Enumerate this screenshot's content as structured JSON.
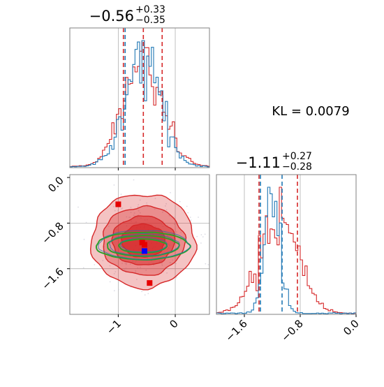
{
  "kl_label": "KL = 0.0079",
  "colors": {
    "red": "#d62728",
    "blue": "#1f77b4",
    "green": "#2ca02c",
    "grid": "#b0b0b0",
    "frame": "#808080"
  },
  "chart_data": [
    {
      "type": "histogram",
      "panel": "top-left",
      "title": {
        "base": "−0.56",
        "sup": "+0.33",
        "sub": "−0.35"
      },
      "xlim": [
        -1.85,
        0.6
      ],
      "grid_x": [
        -1,
        0
      ],
      "quantile_lines": {
        "red": [
          -0.91,
          -0.56,
          -0.23
        ],
        "blue": [
          -0.88
        ]
      },
      "series": [
        {
          "name": "",
          "color": "red",
          "center": -0.56,
          "width": 0.34
        },
        {
          "name": "",
          "color": "blue",
          "center": -0.57,
          "width": 0.31
        }
      ]
    },
    {
      "type": "histogram",
      "panel": "bottom-right",
      "title": {
        "base": "−1.11",
        "sup": "+0.27",
        "sub": "−0.28"
      },
      "xlim": [
        -2.0,
        0.0
      ],
      "xticks": [
        "−1.6",
        "−0.8",
        "0.0"
      ],
      "xtick_values": [
        -1.6,
        -0.8,
        0.0
      ],
      "grid_x": [
        -1.6,
        -0.8
      ],
      "quantile_lines": {
        "red": [
          -1.39,
          -0.84
        ],
        "blue": [
          -1.37,
          -1.06
        ]
      },
      "series": [
        {
          "name": "",
          "color": "red",
          "center": -1.11,
          "width": 0.28
        },
        {
          "name": "",
          "color": "blue",
          "center": -1.2,
          "width": 0.11
        }
      ]
    },
    {
      "type": "contour",
      "panel": "bottom-left",
      "xlim": [
        -1.85,
        0.6
      ],
      "ylim": [
        -2.4,
        0.05
      ],
      "xticks": [
        "−1",
        "0"
      ],
      "xtick_values": [
        -1,
        0
      ],
      "yticks": [
        "0.0",
        "−0.8",
        "−1.6"
      ],
      "ytick_values": [
        0.0,
        -0.8,
        -1.6
      ],
      "grid_x": [
        -1,
        0
      ],
      "grid_y": [
        -0.8,
        -1.6
      ],
      "red_contours": [
        {
          "cx": -0.56,
          "cy": -1.11,
          "rx": 0.91,
          "ry": 0.82
        },
        {
          "cx": -0.56,
          "cy": -1.11,
          "rx": 0.72,
          "ry": 0.6
        },
        {
          "cx": -0.56,
          "cy": -1.11,
          "rx": 0.55,
          "ry": 0.43
        },
        {
          "cx": -0.56,
          "cy": -1.11,
          "rx": 0.38,
          "ry": 0.29
        }
      ],
      "green_contours": [
        {
          "cx": -0.57,
          "cy": -1.2,
          "rx": 0.82,
          "ry": 0.24
        },
        {
          "cx": -0.57,
          "cy": -1.2,
          "rx": 0.63,
          "ry": 0.18
        },
        {
          "cx": -0.57,
          "cy": -1.2,
          "rx": 0.42,
          "ry": 0.12
        }
      ],
      "red_markers": [
        {
          "x": -1.0,
          "y": -0.47
        },
        {
          "x": -0.58,
          "y": -1.14
        },
        {
          "x": -0.54,
          "y": -1.18
        },
        {
          "x": -0.45,
          "y": -1.85
        }
      ],
      "blue_markers": [
        {
          "x": -0.54,
          "y": -1.29
        }
      ]
    }
  ]
}
